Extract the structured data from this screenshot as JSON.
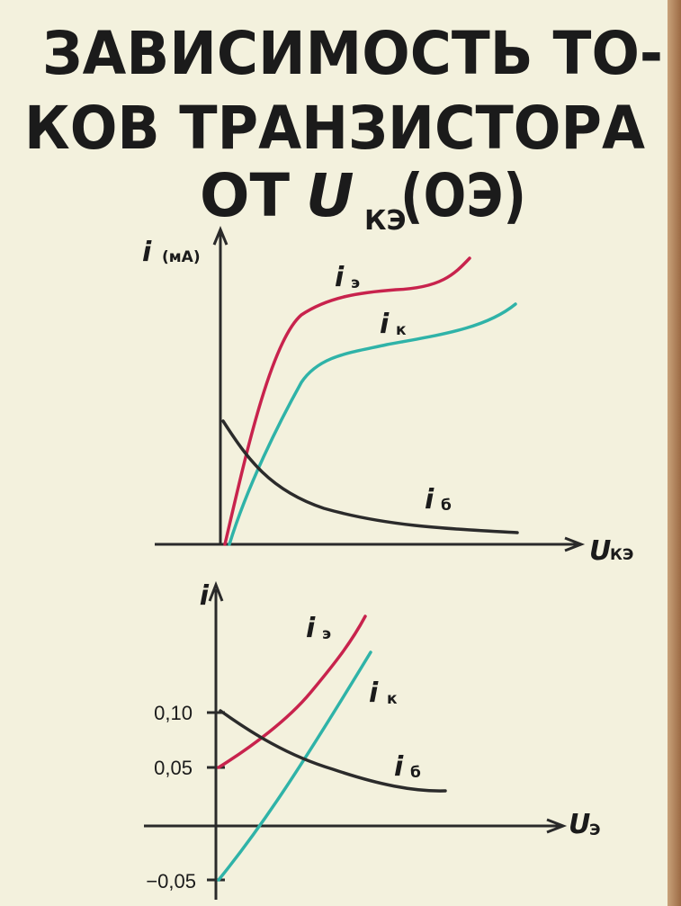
{
  "title": {
    "line1": "ЗАВИСИМОСТЬ ТО-",
    "line2": "КОВ ТРАНЗИСТОРА",
    "line3": {
      "prefix": "ОТ",
      "symbol": "U",
      "subscript": "КЭ",
      "suffix": "(ОЭ)"
    }
  },
  "top_chart": {
    "y_label": {
      "symbol": "i",
      "unit": "(мА)"
    },
    "x_label": {
      "symbol": "U",
      "subscript": "КЭ"
    },
    "curves": [
      {
        "symbol": "i",
        "subscript": "э"
      },
      {
        "symbol": "i",
        "subscript": "к"
      },
      {
        "symbol": "i",
        "subscript": "б"
      }
    ]
  },
  "bottom_chart": {
    "y_label": "i",
    "x_label": {
      "symbol": "U",
      "subscript": "Э"
    },
    "ticks": [
      "0,10",
      "0,05",
      "−0,05"
    ],
    "curves": [
      {
        "symbol": "i",
        "subscript": "э"
      },
      {
        "symbol": "i",
        "subscript": "к"
      },
      {
        "symbol": "i",
        "subscript": "б"
      }
    ]
  }
}
